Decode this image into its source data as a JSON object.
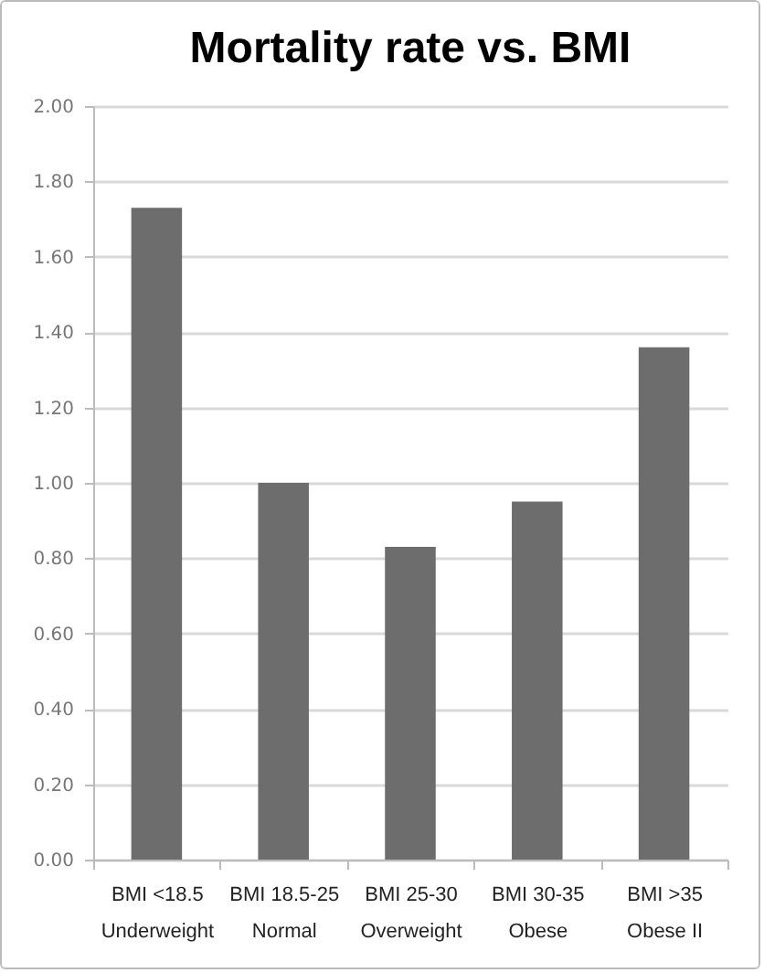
{
  "chart_data": {
    "type": "bar",
    "title": "Mortality rate vs. BMI",
    "categories": [
      "BMI <18.5\nUnderweight",
      "BMI 18.5-25\nNormal",
      "BMI 25-30\nOverweight",
      "BMI 30-35\nObese",
      "BMI >35\nObese II"
    ],
    "values": [
      1.73,
      1.0,
      0.83,
      0.95,
      1.36
    ],
    "color": "#6d6d6d",
    "ylim": [
      0,
      2
    ],
    "yticks": [
      {
        "value": 0,
        "label": "0.00"
      },
      {
        "value": 0.2,
        "label": "0.20"
      },
      {
        "value": 0.4,
        "label": "0.40"
      },
      {
        "value": 0.6,
        "label": "0.60"
      },
      {
        "value": 0.8,
        "label": "0.80"
      },
      {
        "value": 1,
        "label": "1.00"
      },
      {
        "value": 1.2,
        "label": "1.20"
      },
      {
        "value": 1.4,
        "label": "1.40"
      },
      {
        "value": 1.6,
        "label": "1.60"
      },
      {
        "value": 1.8,
        "label": "1.80"
      },
      {
        "value": 2,
        "label": "2.00"
      }
    ],
    "grid": "y"
  }
}
